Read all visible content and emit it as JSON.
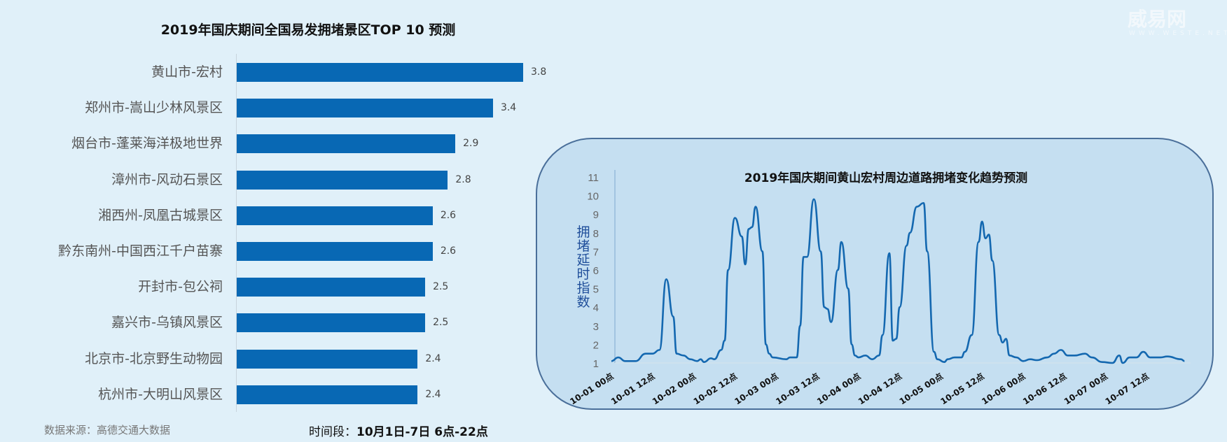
{
  "watermark": {
    "logo": "威易网",
    "url": "WWW.WESTE.NET"
  },
  "footer": {
    "source": "数据来源：高德交通大数据",
    "period_label": "时间段：",
    "period_value": "10月1日-7日 6点-22点"
  },
  "colors": {
    "background": "#e0f0f9",
    "bar": "#0868b4",
    "line": "#1468b0",
    "panel": "#c5dff1",
    "panel_border": "#4a6f9a"
  },
  "chart_data": [
    {
      "type": "bar",
      "orientation": "horizontal",
      "title": "2019年国庆期间全国易发拥堵景区TOP 10 预测",
      "categories": [
        "黄山市-宏村",
        "郑州市-嵩山少林风景区",
        "烟台市-蓬莱海洋极地世界",
        "漳州市-风动石景区",
        "湘西州-凤凰古城景区",
        "黔东南州-中国西江千户苗寨",
        "开封市-包公祠",
        "嘉兴市-乌镇风景区",
        "北京市-北京野生动物园",
        "杭州市-大明山风景区"
      ],
      "values": [
        3.8,
        3.4,
        2.9,
        2.8,
        2.6,
        2.6,
        2.5,
        2.5,
        2.4,
        2.4
      ],
      "data_labels": [
        "3.8",
        "3.4",
        "2.9",
        "2.8",
        "2.6",
        "2.6",
        "2.5",
        "2.5",
        "2.4",
        "2.4"
      ],
      "xlim": [
        0,
        3.8
      ],
      "grid": false
    },
    {
      "type": "line",
      "title": "2019年国庆期间黄山宏村周边道路拥堵变化趋势预测",
      "ylabel": "拥堵延时指数",
      "ylim": [
        1,
        11
      ],
      "yticks": [
        "1",
        "2",
        "3",
        "4",
        "5",
        "6",
        "7",
        "8",
        "9",
        "10",
        "11"
      ],
      "xticks": [
        "10-01 00点",
        "10-01 12点",
        "10-02 00点",
        "10-02 12点",
        "10-03 00点",
        "10-03 12点",
        "10-04 00点",
        "10-04 12点",
        "10-05 00点",
        "10-05 12点",
        "10-06 00点",
        "10-06 12点",
        "10-07 00点",
        "10-07 12点"
      ],
      "grid": false,
      "series": [
        {
          "x": [
            "10-01 00",
            "10-01 02",
            "10-01 04",
            "10-01 07",
            "10-01 10",
            "10-01 12",
            "10-01 14",
            "10-01 16",
            "10-01 18",
            "10-01 19",
            "10-01 21",
            "10-01 23",
            "10-02 01",
            "10-02 02",
            "10-02 03",
            "10-02 05",
            "10-02 06",
            "10-02 08",
            "10-02 09",
            "10-02 10",
            "10-02 12",
            "10-02 14",
            "10-02 15",
            "10-02 16",
            "10-02 17",
            "10-02 18",
            "10-02 20",
            "10-02 21",
            "10-02 22",
            "10-02 23",
            "10-03 03",
            "10-03 04",
            "10-03 06",
            "10-03 07",
            "10-03 08",
            "10-03 09",
            "10-03 11",
            "10-03 13",
            "10-03 14",
            "10-03 15",
            "10-03 16",
            "10-03 18",
            "10-03 19",
            "10-03 21",
            "10-03 22",
            "10-03 23",
            "10-04 00",
            "10-04 02",
            "10-04 04",
            "10-04 06",
            "10-04 07",
            "10-04 09",
            "10-04 10",
            "10-04 11",
            "10-04 12",
            "10-04 14",
            "10-04 15",
            "10-04 17",
            "10-04 19",
            "10-04 20",
            "10-04 22",
            "10-04 23",
            "10-05 01",
            "10-05 02",
            "10-05 04",
            "10-05 06",
            "10-05 07",
            "10-05 09",
            "10-05 11",
            "10-05 12",
            "10-05 13",
            "10-05 14",
            "10-05 15",
            "10-05 17",
            "10-05 18",
            "10-05 19",
            "10-05 20",
            "10-05 22",
            "10-06 00",
            "10-06 02",
            "10-06 04",
            "10-06 07",
            "10-06 09",
            "10-06 11",
            "10-06 13",
            "10-06 15",
            "10-06 18",
            "10-06 20",
            "10-06 23",
            "10-07 02",
            "10-07 04",
            "10-07 05",
            "10-07 07",
            "10-07 09",
            "10-07 11",
            "10-07 13",
            "10-07 16",
            "10-07 18",
            "10-07 22",
            "10-07 23"
          ],
          "y": [
            1.1,
            1.3,
            1.1,
            1.1,
            1.5,
            1.5,
            1.7,
            5.5,
            3.5,
            1.5,
            1.4,
            1.2,
            1.1,
            1.2,
            1.05,
            1.25,
            1.2,
            1.7,
            2.2,
            6,
            8.8,
            7.8,
            6.3,
            8.2,
            8.3,
            9.4,
            7,
            2,
            1.5,
            1.3,
            1.2,
            1.3,
            1.3,
            3,
            6.7,
            6.7,
            9.8,
            7,
            4,
            3.9,
            3.2,
            6,
            7.5,
            5,
            2,
            1.4,
            1.3,
            1.4,
            1.2,
            1.4,
            2.5,
            6.9,
            2.2,
            2.3,
            4,
            7.3,
            8,
            9.4,
            9.6,
            7,
            1.6,
            1.2,
            1.05,
            1.2,
            1.3,
            1.3,
            1.6,
            2.5,
            7.5,
            8.6,
            7.7,
            7.9,
            6.5,
            2.5,
            2.1,
            2.3,
            1.4,
            1.3,
            1.1,
            1.2,
            1.15,
            1.3,
            1.5,
            1.7,
            1.4,
            1.4,
            1.5,
            1.3,
            1.05,
            1.0,
            1.4,
            1.0,
            1.3,
            1.3,
            1.6,
            1.3,
            1.3,
            1.35,
            1.2,
            1.1
          ]
        }
      ]
    }
  ]
}
